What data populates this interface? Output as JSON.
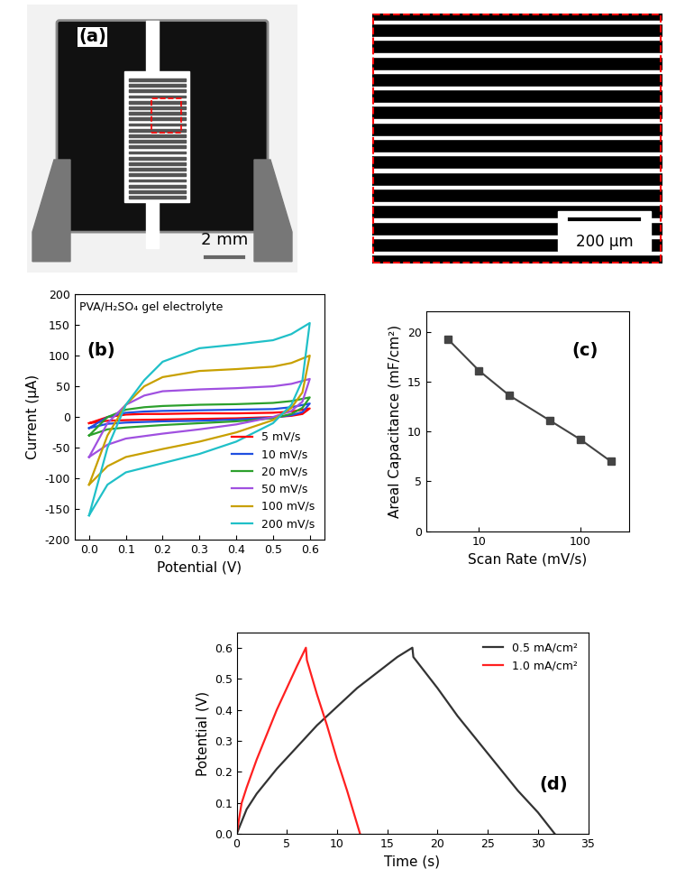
{
  "chart_data": [
    {
      "type": "image",
      "panel_label": "(a)",
      "scale_bars": [
        "2 mm",
        "200 μm"
      ]
    },
    {
      "type": "line",
      "panel_label": "(b)",
      "annotation": "PVA/H₂SO₄ gel electrolyte",
      "x_label": "Potential (V)",
      "y_label": "Current (μA)",
      "x": [
        0,
        0.05,
        0.1,
        0.15,
        0.2,
        0.3,
        0.4,
        0.5,
        0.55,
        0.6,
        0.58,
        0.55,
        0.5,
        0.4,
        0.3,
        0.2,
        0.1,
        0.05,
        0
      ],
      "series": [
        {
          "name": "5 mV/s",
          "color": "#ff0000",
          "values": [
            -10,
            0,
            4,
            5,
            5,
            6,
            6,
            7,
            9,
            14,
            5,
            2,
            0,
            -2,
            -3,
            -4,
            -5,
            -6,
            -10
          ]
        },
        {
          "name": "10 mV/s",
          "color": "#1f4fe0",
          "values": [
            -18,
            0,
            7,
            9,
            10,
            11,
            12,
            13,
            16,
            22,
            8,
            3,
            -1,
            -4,
            -6,
            -7,
            -9,
            -11,
            -18
          ]
        },
        {
          "name": "20 mV/s",
          "color": "#2ca02c",
          "values": [
            -30,
            0,
            12,
            16,
            18,
            20,
            21,
            23,
            26,
            32,
            15,
            5,
            -2,
            -7,
            -10,
            -13,
            -17,
            -20,
            -30
          ]
        },
        {
          "name": "50 mV/s",
          "color": "#a050e0",
          "values": [
            -65,
            -10,
            20,
            35,
            42,
            45,
            47,
            50,
            54,
            62,
            25,
            10,
            0,
            -12,
            -20,
            -27,
            -35,
            -45,
            -65
          ]
        },
        {
          "name": "100 mV/s",
          "color": "#c8a000",
          "values": [
            -110,
            -30,
            20,
            50,
            65,
            75,
            78,
            82,
            88,
            100,
            40,
            15,
            -5,
            -25,
            -40,
            -52,
            -65,
            -80,
            -110
          ]
        },
        {
          "name": "200 mV/s",
          "color": "#20c0c8",
          "values": [
            -160,
            -50,
            20,
            60,
            90,
            112,
            118,
            125,
            135,
            153,
            60,
            20,
            -10,
            -40,
            -60,
            -75,
            -90,
            -110,
            -160
          ]
        }
      ],
      "xlim": [
        -0.04,
        0.64
      ],
      "xticks": [
        {
          "value": 0,
          "label": "0.0"
        },
        0.1,
        0.2,
        0.3,
        0.4,
        0.5,
        0.6
      ],
      "ylim": [
        -200,
        200
      ],
      "yticks": [
        -200,
        -150,
        -100,
        -50,
        0,
        50,
        100,
        150,
        200
      ],
      "legend": "lower right"
    },
    {
      "type": "line",
      "panel_label": "(c)",
      "x_label": "Scan Rate (mV/s)",
      "y_label": "Areal Capacitance (mF/cm²)",
      "x": [
        5,
        10,
        20,
        50,
        100,
        200
      ],
      "values": [
        19.2,
        16.1,
        13.6,
        11.1,
        9.2,
        7.0
      ],
      "color": "#444444",
      "marker": "square",
      "log": "x",
      "xlim": [
        3,
        300
      ],
      "xticks": [
        10,
        100
      ],
      "ylim": [
        0,
        22
      ],
      "yticks": [
        0,
        5,
        10,
        15,
        20
      ]
    },
    {
      "type": "line",
      "panel_label": "(d)",
      "x_label": "Time (s)",
      "y_label": "Potential (V)",
      "series": [
        {
          "name": "0.5 mA/cm²",
          "color": "#333333",
          "x": [
            0,
            1,
            2,
            4,
            6,
            8,
            10,
            12,
            14,
            16,
            17.5,
            17.6,
            20,
            22,
            24,
            26,
            28,
            30,
            31.7
          ],
          "values": [
            0,
            0.08,
            0.13,
            0.21,
            0.28,
            0.35,
            0.41,
            0.47,
            0.52,
            0.57,
            0.6,
            0.57,
            0.47,
            0.38,
            0.3,
            0.22,
            0.14,
            0.07,
            0
          ]
        },
        {
          "name": "1.0 mA/cm²",
          "color": "#ff2020",
          "x": [
            0,
            0.5,
            1,
            2,
            3,
            4,
            5,
            6,
            6.9,
            7,
            8,
            9,
            10,
            11,
            12.3
          ],
          "values": [
            0,
            0.1,
            0.15,
            0.24,
            0.32,
            0.4,
            0.47,
            0.54,
            0.6,
            0.56,
            0.45,
            0.35,
            0.24,
            0.14,
            0
          ]
        }
      ],
      "xlim": [
        0,
        35
      ],
      "xticks": [
        0,
        5,
        10,
        15,
        20,
        25,
        30,
        35
      ],
      "ylim": [
        0,
        0.65
      ],
      "yticks": [
        {
          "value": 0,
          "label": "0.0"
        },
        0.1,
        0.2,
        0.3,
        0.4,
        0.5,
        0.6
      ],
      "legend": "upper right"
    }
  ]
}
